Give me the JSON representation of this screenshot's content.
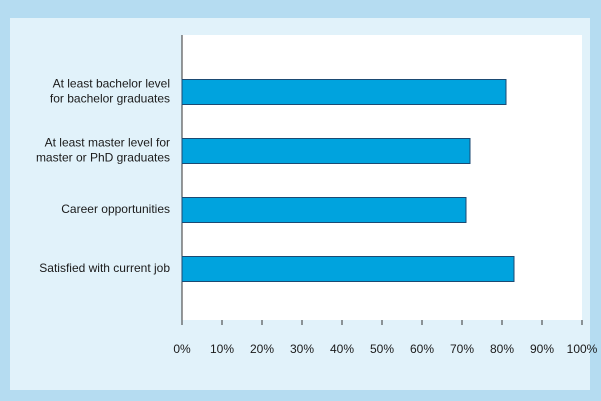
{
  "chart_data": {
    "type": "barh",
    "categories": [
      [
        "At least bachelor level",
        "for bachelor graduates"
      ],
      [
        "At least master level for",
        "master or PhD graduates"
      ],
      [
        "Career opportunities"
      ],
      [
        "Satisfied with current job"
      ]
    ],
    "values": [
      81,
      72,
      71,
      83
    ],
    "color": "#00a3de",
    "xlim": [
      0,
      100
    ],
    "xticks": [
      {
        "value": 0,
        "label": "0%"
      },
      {
        "value": 10,
        "label": "10%"
      },
      {
        "value": 20,
        "label": "20%"
      },
      {
        "value": 30,
        "label": "30%"
      },
      {
        "value": 40,
        "label": "40%"
      },
      {
        "value": 50,
        "label": "50%"
      },
      {
        "value": 60,
        "label": "60%"
      },
      {
        "value": 70,
        "label": "70%"
      },
      {
        "value": 80,
        "label": "80%"
      },
      {
        "value": 90,
        "label": "90%"
      },
      {
        "value": 100,
        "label": "100%"
      }
    ]
  }
}
